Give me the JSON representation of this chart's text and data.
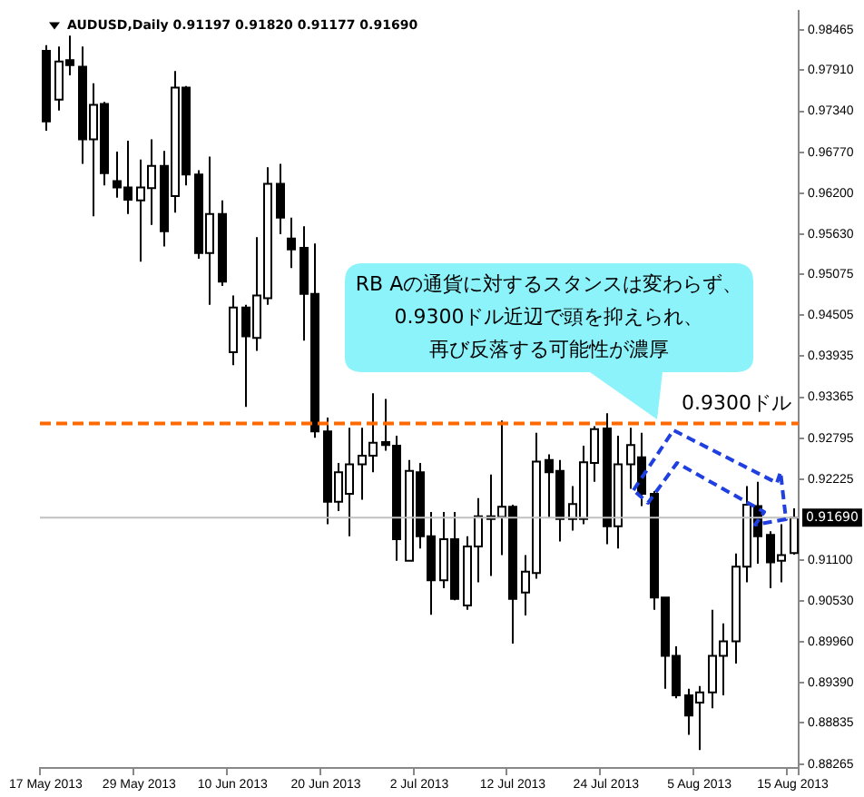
{
  "chart_data": {
    "type": "candlestick",
    "title": "AUDUSD,Daily 0.91197 0.91820 0.91177 0.91690",
    "categories": [
      "17 May 2013",
      null,
      null,
      null,
      null,
      null,
      null,
      null,
      "29 May 2013",
      null,
      null,
      null,
      null,
      null,
      null,
      null,
      "10 Jun 2013",
      null,
      null,
      null,
      null,
      null,
      null,
      null,
      "20 Jun 2013",
      null,
      null,
      null,
      null,
      null,
      null,
      null,
      "2 Jul 2013",
      null,
      null,
      null,
      null,
      null,
      null,
      null,
      "12 Jul 2013",
      null,
      null,
      null,
      null,
      null,
      null,
      null,
      "24 Jul 2013",
      null,
      null,
      null,
      null,
      null,
      null,
      null,
      "5 Aug 2013",
      null,
      null,
      null,
      null,
      null,
      null,
      null,
      "15 Aug 2013"
    ],
    "ohlc": [
      [
        0.9818,
        0.9826,
        0.9707,
        0.972
      ],
      [
        0.975,
        0.9824,
        0.9735,
        0.9803
      ],
      [
        0.9805,
        0.9839,
        0.9784,
        0.9798
      ],
      [
        0.9796,
        0.9824,
        0.9661,
        0.9695
      ],
      [
        0.9695,
        0.9773,
        0.9588,
        0.9743
      ],
      [
        0.9744,
        0.9747,
        0.9631,
        0.9648
      ],
      [
        0.9637,
        0.9678,
        0.9614,
        0.9628
      ],
      [
        0.9628,
        0.9693,
        0.9591,
        0.9611
      ],
      [
        0.961,
        0.9667,
        0.9525,
        0.9628
      ],
      [
        0.9627,
        0.9695,
        0.9576,
        0.9658
      ],
      [
        0.9658,
        0.9679,
        0.9546,
        0.9567
      ],
      [
        0.9616,
        0.979,
        0.9593,
        0.9767
      ],
      [
        0.9767,
        0.9769,
        0.9631,
        0.9646
      ],
      [
        0.9646,
        0.9652,
        0.9529,
        0.9537
      ],
      [
        0.9537,
        0.9671,
        0.9465,
        0.9591
      ],
      [
        0.9591,
        0.961,
        0.9491,
        0.9497
      ],
      [
        0.9399,
        0.9478,
        0.9381,
        0.9461
      ],
      [
        0.9461,
        0.9465,
        0.9323,
        0.9421
      ],
      [
        0.9419,
        0.9559,
        0.9401,
        0.9478
      ],
      [
        0.9474,
        0.9656,
        0.9465,
        0.9633
      ],
      [
        0.9633,
        0.9661,
        0.9563,
        0.9586
      ],
      [
        0.9557,
        0.9586,
        0.9516,
        0.9542
      ],
      [
        0.9544,
        0.9574,
        0.9415,
        0.948
      ],
      [
        0.948,
        0.955,
        0.928,
        0.9289
      ],
      [
        0.9289,
        0.9308,
        0.916,
        0.9191
      ],
      [
        0.9191,
        0.9245,
        0.9178,
        0.9232
      ],
      [
        0.9202,
        0.9294,
        0.9143,
        0.9243
      ],
      [
        0.9243,
        0.9294,
        0.9194,
        0.9255
      ],
      [
        0.9255,
        0.9342,
        0.9232,
        0.9273
      ],
      [
        0.9274,
        0.9334,
        0.9262,
        0.927
      ],
      [
        0.9269,
        0.9283,
        0.9109,
        0.9139
      ],
      [
        0.9109,
        0.9249,
        0.9109,
        0.9234
      ],
      [
        0.9232,
        0.9245,
        0.9126,
        0.9143
      ],
      [
        0.9143,
        0.9177,
        0.9034,
        0.9082
      ],
      [
        0.9082,
        0.9177,
        0.9071,
        0.9139
      ],
      [
        0.9139,
        0.9177,
        0.9054,
        0.9056
      ],
      [
        0.9047,
        0.9143,
        0.9041,
        0.9129
      ],
      [
        0.9129,
        0.9196,
        0.9079,
        0.9171
      ],
      [
        0.9171,
        0.9229,
        0.9088,
        0.9167
      ],
      [
        0.917,
        0.9304,
        0.9117,
        0.9184
      ],
      [
        0.9184,
        0.9187,
        0.8994,
        0.9056
      ],
      [
        0.9065,
        0.9117,
        0.9033,
        0.9094
      ],
      [
        0.9092,
        0.9287,
        0.9084,
        0.9247
      ],
      [
        0.9249,
        0.9257,
        0.9168,
        0.9232
      ],
      [
        0.9234,
        0.9249,
        0.9136,
        0.9167
      ],
      [
        0.9167,
        0.9213,
        0.9151,
        0.9188
      ],
      [
        0.9167,
        0.9269,
        0.916,
        0.9246
      ],
      [
        0.9245,
        0.9296,
        0.9219,
        0.9292
      ],
      [
        0.9293,
        0.9314,
        0.9132,
        0.9157
      ],
      [
        0.9157,
        0.9283,
        0.9126,
        0.9243
      ],
      [
        0.9243,
        0.9294,
        0.9209,
        0.927
      ],
      [
        0.9253,
        0.9287,
        0.9185,
        0.9202
      ],
      [
        0.9202,
        0.9206,
        0.9041,
        0.9058
      ],
      [
        0.9058,
        0.9058,
        0.8931,
        0.8977
      ],
      [
        0.8977,
        0.899,
        0.8918,
        0.8922
      ],
      [
        0.8922,
        0.8931,
        0.8867,
        0.8894
      ],
      [
        0.8912,
        0.8935,
        0.8846,
        0.8926
      ],
      [
        0.8926,
        0.9041,
        0.8904,
        0.8977
      ],
      [
        0.8977,
        0.9022,
        0.8922,
        0.8997
      ],
      [
        0.8997,
        0.9119,
        0.8966,
        0.9101
      ],
      [
        0.9101,
        0.9213,
        0.9079,
        0.9187
      ],
      [
        0.9185,
        0.9219,
        0.9105,
        0.9143
      ],
      [
        0.9145,
        0.915,
        0.9071,
        0.9107
      ],
      [
        0.9109,
        0.916,
        0.9079,
        0.9117
      ],
      [
        0.91197,
        0.9182,
        0.91177,
        0.9169
      ]
    ],
    "ylim": [
      0.8821,
      0.9873
    ],
    "yticks": [
      0.98465,
      {
        "value": 0.9791,
        "label": "0.97910"
      },
      {
        "value": 0.9734,
        "label": "0.97340"
      },
      {
        "value": 0.9677,
        "label": "0.96770"
      },
      {
        "value": 0.962,
        "label": "0.96200"
      },
      {
        "value": 0.9563,
        "label": "0.95630"
      },
      0.95075,
      0.94505,
      0.93935,
      0.93365,
      0.92795,
      0.92225,
      {
        "value": 0.911,
        "label": "0.91100"
      },
      {
        "value": 0.9053,
        "label": "0.90530"
      },
      {
        "value": 0.8996,
        "label": "0.89960"
      },
      {
        "value": 0.8939,
        "label": "0.89390"
      },
      0.88835,
      0.88265
    ],
    "grid": false,
    "legend": false,
    "ref_lines": [
      {
        "axis": "y",
        "value": 0.93,
        "label": "0.9300ドル",
        "color": "#ff6a00",
        "line_style": "dashed"
      },
      {
        "axis": "y",
        "value": 0.9169,
        "label": "0.91690",
        "color": "#c0c0c0",
        "line_style": "solid"
      }
    ],
    "annotations": [
      "RB Aの通貨に対するスタンスは変わらず、",
      "0.9300ドル近辺で頭を抑えられ、",
      "再び反落する可能性が濃厚"
    ]
  }
}
